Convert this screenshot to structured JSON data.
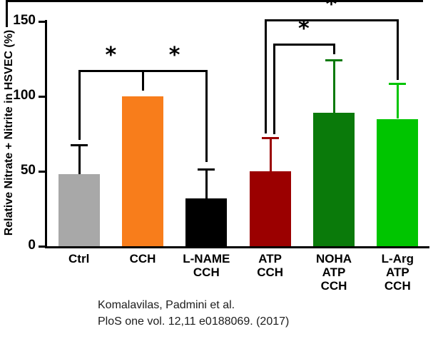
{
  "chart_data": {
    "type": "bar",
    "title": "",
    "ylabel": "Relative Nitrate + Nitrite in HSVEC (%)",
    "xlabel": "",
    "ylim": [
      0,
      150
    ],
    "yticks": [
      0,
      50,
      100,
      150
    ],
    "grid": false,
    "legend": null,
    "categories": [
      "Ctrl",
      "CCH",
      "L-NAME CCH",
      "ATP CCH",
      "NOHA ATP CCH",
      "L-Arg ATP CCH"
    ],
    "category_label_lines": [
      [
        "Ctrl"
      ],
      [
        "CCH"
      ],
      [
        "L-NAME",
        "CCH"
      ],
      [
        "ATP",
        "CCH"
      ],
      [
        "NOHA",
        "ATP",
        "CCH"
      ],
      [
        "L-Arg",
        "ATP",
        "CCH"
      ]
    ],
    "values": [
      48,
      100,
      32,
      50,
      89,
      85
    ],
    "errors_plus": [
      19,
      0,
      19,
      22,
      35,
      23
    ],
    "bar_colors": [
      "#a8a8a8",
      "#f87d1b",
      "#000000",
      "#9b0000",
      "#0a7a0a",
      "#00c500"
    ],
    "error_bar_colors": [
      "#000000",
      "#f87d1b",
      "#000000",
      "#9b0000",
      "#0a7a0a",
      "#00c500"
    ],
    "significance_brackets": [
      {
        "from_index": 0,
        "to_index": 1,
        "label": "*",
        "line_y": 117,
        "from_drop_to_y": 71,
        "to_drop_to_y": 104,
        "from_dx": 0,
        "to_dx": 0
      },
      {
        "from_index": 1,
        "to_index": 2,
        "label": "*",
        "line_y": 117,
        "from_drop_to_y": 104,
        "to_drop_to_y": 56,
        "from_dx": 0,
        "to_dx": 0
      },
      {
        "from_index": 3,
        "to_index": 4,
        "label": "*",
        "line_y": 135,
        "from_drop_to_y": 75,
        "to_drop_to_y": 128,
        "from_dx": 5,
        "to_dx": 0
      },
      {
        "from_index": 3,
        "to_index": 5,
        "label": "*",
        "line_y": 151,
        "from_drop_to_y": 75,
        "to_drop_to_y": 111,
        "from_dx": -7,
        "to_dx": 0
      }
    ]
  },
  "citation": {
    "line1": "Komalavilas, Padmini et al.",
    "line2": "PloS one vol. 12,11 e0188069. (2017)"
  }
}
